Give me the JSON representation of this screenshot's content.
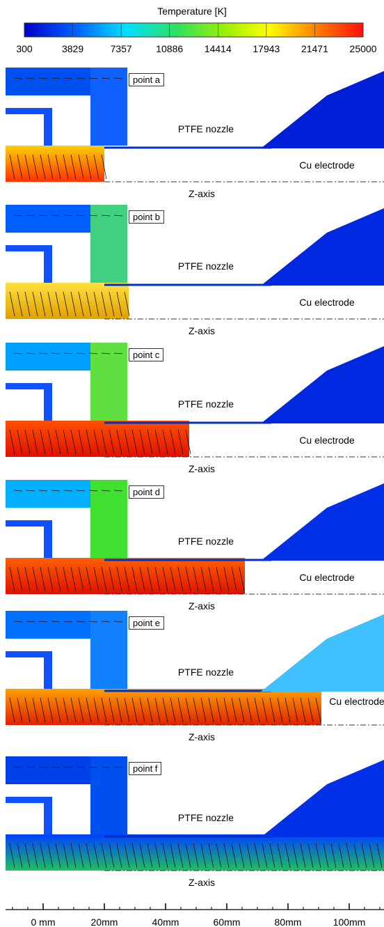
{
  "colorbar": {
    "title": "Temperature [K]",
    "ticks": [
      "300",
      "3829",
      "7357",
      "10886",
      "14414",
      "17943",
      "21471",
      "25000"
    ]
  },
  "panels": [
    {
      "label": "point a",
      "nozzle_label": "PTFE nozzle",
      "electrode_label": "Cu electrode",
      "axis_label": "Z-axis"
    },
    {
      "label": "point b",
      "nozzle_label": "PTFE nozzle",
      "electrode_label": "Cu electrode",
      "axis_label": "Z-axis"
    },
    {
      "label": "point c",
      "nozzle_label": "PTFE nozzle",
      "electrode_label": "Cu electrode",
      "axis_label": "Z-axis"
    },
    {
      "label": "point d",
      "nozzle_label": "PTFE nozzle",
      "electrode_label": "Cu electrode",
      "axis_label": "Z-axis"
    },
    {
      "label": "point e",
      "nozzle_label": "PTFE nozzle",
      "electrode_label": "Cu electrode",
      "axis_label": "Z-axis"
    },
    {
      "label": "point f",
      "nozzle_label": "PTFE nozzle",
      "axis_label": "Z-axis"
    }
  ],
  "scale": {
    "labels": [
      "0 mm",
      "20mm",
      "40mm",
      "60mm",
      "80mm",
      "100mm"
    ]
  }
}
